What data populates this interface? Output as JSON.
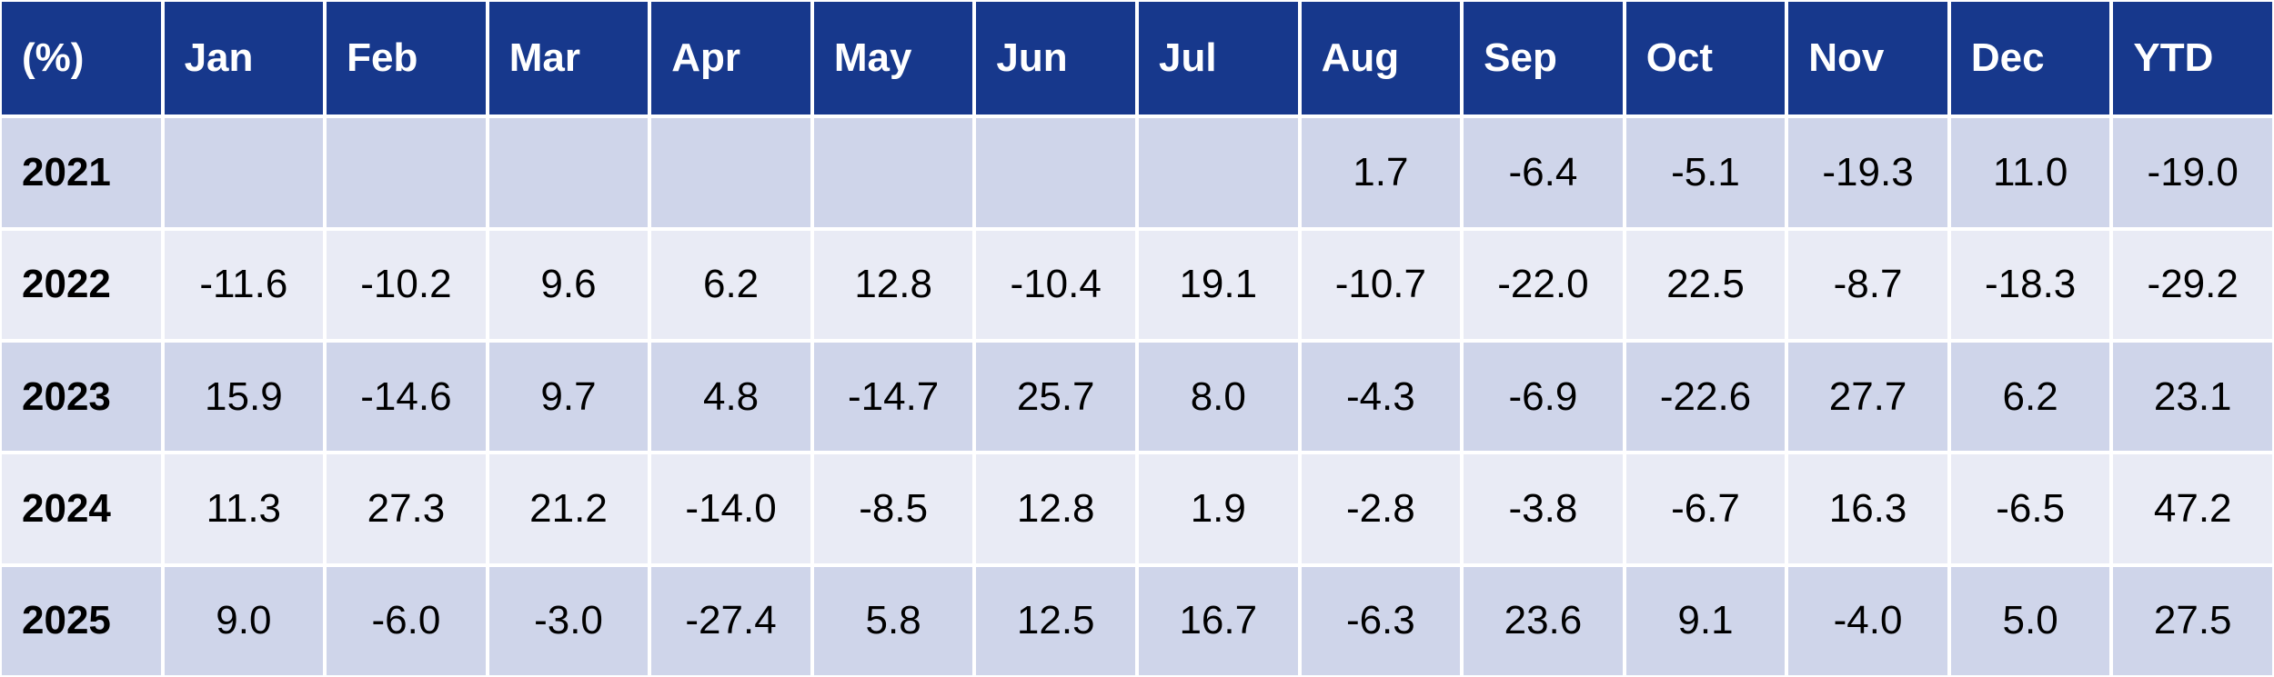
{
  "table": {
    "header": [
      "(%)",
      "Jan",
      "Feb",
      "Mar",
      "Apr",
      "May",
      "Jun",
      "Jul",
      "Aug",
      "Sep",
      "Oct",
      "Nov",
      "Dec",
      "YTD"
    ],
    "rows": [
      [
        "2021",
        null,
        null,
        null,
        null,
        null,
        null,
        null,
        "1.7",
        "-6.4",
        "-5.1",
        "-19.3",
        "11.0",
        "-19.0"
      ],
      [
        "2022",
        "-11.6",
        "-10.2",
        "9.6",
        "6.2",
        "12.8",
        "-10.4",
        "19.1",
        "-10.7",
        "-22.0",
        "22.5",
        "-8.7",
        "-18.3",
        "-29.2"
      ],
      [
        "2023",
        "15.9",
        "-14.6",
        "9.7",
        "4.8",
        "-14.7",
        "25.7",
        "8.0",
        "-4.3",
        "-6.9",
        "-22.6",
        "27.7",
        "6.2",
        "23.1"
      ],
      [
        "2024",
        "11.3",
        "27.3",
        "21.2",
        "-14.0",
        "-8.5",
        "12.8",
        "1.9",
        "-2.8",
        "-3.8",
        "-6.7",
        "16.3",
        "-6.5",
        "47.2"
      ],
      [
        "2025",
        "9.0",
        "-6.0",
        "-3.0",
        "-27.4",
        "5.8",
        "12.5",
        "16.7",
        "-6.3",
        "23.6",
        "9.1",
        "-4.0",
        "5.0",
        "27.5"
      ]
    ]
  }
}
